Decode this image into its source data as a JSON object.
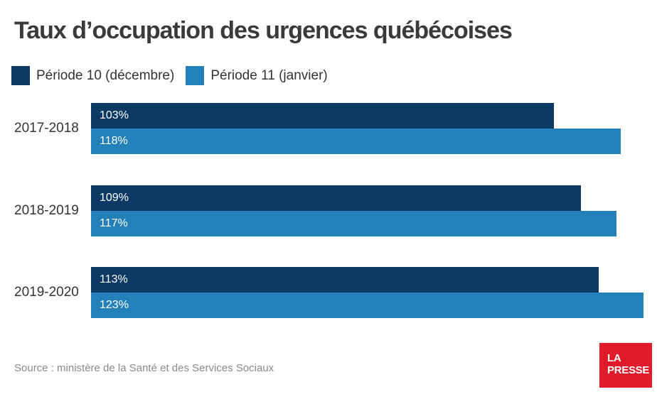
{
  "header": {
    "title": "Taux d’occupation des urgences québécoises"
  },
  "legend": [
    {
      "label": "Période 10 (décembre)",
      "color": "#0d3a65"
    },
    {
      "label": "Période 11 (janvier)",
      "color": "#2480b9"
    }
  ],
  "chart_data": {
    "type": "bar",
    "orientation": "horizontal",
    "title": "Taux d’occupation des urgences québécoises",
    "categories": [
      "2017-2018",
      "2018-2019",
      "2019-2020"
    ],
    "series": [
      {
        "name": "Période 10 (décembre)",
        "color": "#0d3a65",
        "values": [
          103,
          109,
          113
        ],
        "labels": [
          "103%",
          "109%",
          "113%"
        ]
      },
      {
        "name": "Période 11 (janvier)",
        "color": "#2480b9",
        "values": [
          118,
          117,
          123
        ],
        "labels": [
          "118%",
          "117%",
          "123%"
        ]
      }
    ],
    "xlim": [
      0,
      126
    ],
    "unit": "%",
    "grid": false,
    "legend_position": "top",
    "value_labels": "inside-left"
  },
  "footer": {
    "source": "Source : ministère de la Santé et des Services Sociaux",
    "logo_line1": "LA",
    "logo_line2": "PRESSE",
    "logo_color": "#e0192b"
  }
}
